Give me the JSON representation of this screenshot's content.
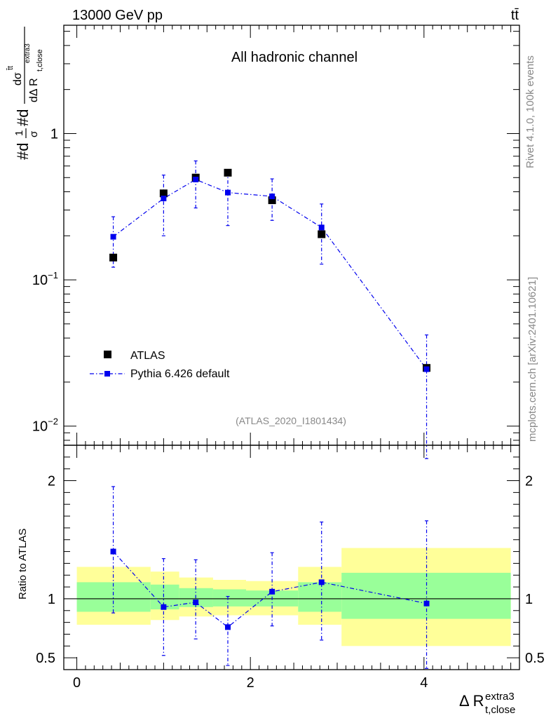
{
  "header": {
    "energy_label": "13000 GeV pp",
    "process_label": "tt̄",
    "channel_title": "All hadronic channel",
    "analysis_id": "(ATLAS_2020_I1801434)",
    "side_label_rivet": "Rivet 4.1.0,  100k events",
    "side_label_mcplots": "mcplots.cern.ch [arXiv:2401.10621]"
  },
  "colors": {
    "data": "#000000",
    "mc": "#0000ee",
    "band_outer": "#ffff99",
    "band_inner": "#99ff99",
    "side_text": "#888888"
  },
  "chart_data": [
    {
      "type": "scatter",
      "panel": "main",
      "yscale": "log",
      "ylabel": "#d₁⁄σ#d dσᵗᵗ̄ / dΔ R t,close extra3",
      "ylabel_parts": {
        "prefix": "#d",
        "frac": "1",
        "sigma": "σ",
        "mid": "#d",
        "num": "dσ",
        "num_sup": "t̄t",
        "den": "dΔ R",
        "den_sub": "t,close",
        "den_sup": "extra3"
      },
      "xlim": [
        -0.15,
        5.1
      ],
      "ylim": [
        0.0074,
        5.5
      ],
      "ytick_labels": [
        {
          "value": 1,
          "base": "1",
          "exp": ""
        },
        {
          "value": 0.1,
          "base": "10",
          "exp": "−1"
        },
        {
          "value": 0.01,
          "base": "10",
          "exp": "−2"
        }
      ],
      "legend_location": "lower-left",
      "series": [
        {
          "name": "ATLAS",
          "marker": "square",
          "x": [
            0.42,
            1.0,
            1.37,
            1.74,
            2.25,
            2.82,
            4.03
          ],
          "y": [
            0.142,
            0.39,
            0.5,
            0.54,
            0.35,
            0.205,
            0.025
          ]
        },
        {
          "name": "Pythia 6.426 default",
          "marker": "small-square",
          "linestyle": "dash-dot",
          "x": [
            0.42,
            1.0,
            1.37,
            1.74,
            2.25,
            2.82,
            4.03
          ],
          "y": [
            0.197,
            0.36,
            0.485,
            0.395,
            0.372,
            0.228,
            0.0245
          ],
          "y_err_lo": [
            0.122,
            0.2,
            0.31,
            0.235,
            0.255,
            0.128,
            0.006
          ],
          "y_err_hi": [
            0.27,
            0.52,
            0.65,
            0.55,
            0.49,
            0.33,
            0.042
          ]
        }
      ]
    },
    {
      "type": "scatter",
      "panel": "ratio",
      "ylabel": "Ratio to ATLAS",
      "xlabel": "Δ R t,close extra3",
      "xlabel_parts": {
        "main": "Δ R",
        "sub": "t,close",
        "sup": "extra3"
      },
      "xlim": [
        -0.15,
        5.1
      ],
      "ylim": [
        0.4,
        2.3
      ],
      "xtick_labels": [
        0,
        2,
        4
      ],
      "ytick_labels": [
        "0.5",
        "1",
        "2"
      ],
      "bands": {
        "edges": [
          0.0,
          0.85,
          1.18,
          1.57,
          1.95,
          2.55,
          3.05,
          5.0
        ],
        "outer_lo": [
          0.78,
          0.82,
          0.85,
          0.86,
          0.86,
          0.78,
          0.6
        ],
        "outer_hi": [
          1.27,
          1.23,
          1.18,
          1.16,
          1.15,
          1.27,
          1.43
        ],
        "inner_lo": [
          0.89,
          0.91,
          0.93,
          0.935,
          0.935,
          0.89,
          0.83
        ],
        "inner_hi": [
          1.14,
          1.12,
          1.09,
          1.08,
          1.07,
          1.14,
          1.22
        ]
      },
      "series": [
        {
          "name": "Pythia 6.426 default",
          "x": [
            0.42,
            1.0,
            1.37,
            1.74,
            2.25,
            2.82,
            4.03
          ],
          "y": [
            1.4,
            0.93,
            0.97,
            0.76,
            1.06,
            1.14,
            0.96
          ],
          "y_err_lo": [
            0.88,
            0.52,
            0.66,
            0.435,
            0.77,
            0.65,
            0.41
          ],
          "y_err_hi": [
            1.95,
            1.34,
            1.33,
            1.02,
            1.39,
            1.65,
            1.66
          ]
        }
      ]
    }
  ]
}
